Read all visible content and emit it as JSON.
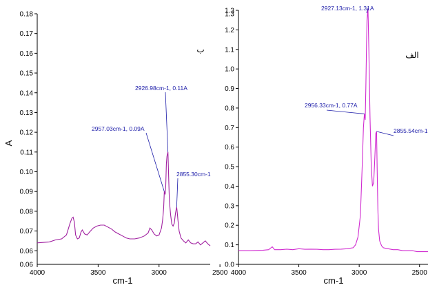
{
  "chart_data": [
    {
      "type": "line",
      "panel_label": "ب",
      "xlabel": "cm-1",
      "ylabel": "A",
      "xlim": [
        4000,
        2580
      ],
      "ylim": [
        0.058,
        0.18
      ],
      "xticks": [
        4000,
        3500,
        3000,
        2500
      ],
      "xtick_labels": [
        "4000",
        "3500",
        "3000",
        "2500"
      ],
      "yticks": [
        0.06,
        0.07,
        0.08,
        0.09,
        0.1,
        0.11,
        0.12,
        0.13,
        0.14,
        0.15,
        0.16,
        0.17,
        0.18
      ],
      "ytick_labels": [
        "0.06",
        "0.07",
        "0.08",
        "0.09",
        "0.10",
        "0.11",
        "0.12",
        "0.13",
        "0.14",
        "0.15",
        "0.16",
        "0.17",
        "0.18"
      ],
      "extra_ytick_label": "0.06",
      "color": "#a020a0",
      "series": [
        {
          "x": [
            4000,
            3900,
            3850,
            3800,
            3760,
            3730,
            3715,
            3705,
            3695,
            3685,
            3670,
            3655,
            3640,
            3630,
            3610,
            3590,
            3570,
            3540,
            3510,
            3480,
            3450,
            3420,
            3390,
            3360,
            3330,
            3300,
            3270,
            3240,
            3200,
            3160,
            3120,
            3090,
            3075,
            3060,
            3040,
            3020,
            3000,
            2980,
            2970,
            2962,
            2957,
            2950,
            2945,
            2940,
            2935,
            2927,
            2920,
            2915,
            2905,
            2895,
            2885,
            2875,
            2865,
            2858,
            2855,
            2850,
            2845,
            2835,
            2820,
            2800,
            2780,
            2760,
            2740,
            2720,
            2700,
            2680,
            2660,
            2640,
            2620,
            2600,
            2580
          ],
          "y": [
            0.064,
            0.0645,
            0.0655,
            0.066,
            0.068,
            0.074,
            0.0765,
            0.077,
            0.0745,
            0.068,
            0.066,
            0.0665,
            0.0695,
            0.0705,
            0.0685,
            0.068,
            0.0695,
            0.0715,
            0.0725,
            0.073,
            0.073,
            0.072,
            0.071,
            0.0695,
            0.0685,
            0.0675,
            0.0665,
            0.066,
            0.066,
            0.0665,
            0.0675,
            0.069,
            0.0715,
            0.0705,
            0.0685,
            0.0675,
            0.068,
            0.0715,
            0.076,
            0.082,
            0.09,
            0.0885,
            0.093,
            0.104,
            0.108,
            0.11,
            0.095,
            0.085,
            0.078,
            0.0735,
            0.0725,
            0.074,
            0.079,
            0.0815,
            0.082,
            0.079,
            0.0755,
            0.07,
            0.0665,
            0.065,
            0.064,
            0.0655,
            0.064,
            0.0635,
            0.0635,
            0.0645,
            0.063,
            0.064,
            0.065,
            0.0635,
            0.0625
          ]
        }
      ],
      "annotations": [
        {
          "text": "2926.98cm-1, 0.11A",
          "x": 2926.98,
          "y": 0.11
        },
        {
          "text": "2957.03cm-1, 0.09A",
          "x": 2957.03,
          "y": 0.09
        },
        {
          "text": "2855.30cm-1",
          "x": 2855.3,
          "y": 0.082
        }
      ]
    },
    {
      "type": "line",
      "panel_label": "الف",
      "xlabel": "cm-1",
      "ylabel": "",
      "xlim": [
        4000,
        2430
      ],
      "ylim": [
        0,
        1.3
      ],
      "xticks": [
        4000,
        3500,
        3000,
        2500
      ],
      "xtick_labels": [
        "4000",
        "3500",
        "3000",
        "2500"
      ],
      "yticks": [
        0,
        0.1,
        0.2,
        0.3,
        0.4,
        0.5,
        0.6,
        0.7,
        0.8,
        0.9,
        1.0,
        1.1,
        1.2,
        1.3
      ],
      "ytick_labels": [
        "0.0",
        "0.1",
        "0.2",
        "0.3",
        "0.4",
        "0.5",
        "0.6",
        "0.7",
        "0.8",
        "0.9",
        "1.0",
        "1.1",
        "1.2",
        "1.3"
      ],
      "extra_ytick_label": "1.3",
      "color": "#d02ad0",
      "series": [
        {
          "x": [
            4000,
            3900,
            3800,
            3750,
            3720,
            3700,
            3650,
            3600,
            3550,
            3500,
            3450,
            3400,
            3350,
            3300,
            3250,
            3200,
            3150,
            3100,
            3050,
            3030,
            3010,
            2990,
            2975,
            2965,
            2957,
            2950,
            2945,
            2940,
            2935,
            2927,
            2920,
            2910,
            2900,
            2890,
            2880,
            2870,
            2862,
            2856,
            2850,
            2845,
            2840,
            2830,
            2815,
            2800,
            2780,
            2760,
            2720,
            2680,
            2640,
            2600,
            2560,
            2520,
            2480,
            2430
          ],
          "y": [
            0.07,
            0.07,
            0.072,
            0.075,
            0.09,
            0.075,
            0.075,
            0.078,
            0.075,
            0.08,
            0.077,
            0.078,
            0.077,
            0.075,
            0.075,
            0.077,
            0.078,
            0.08,
            0.085,
            0.1,
            0.14,
            0.25,
            0.5,
            0.7,
            0.77,
            0.74,
            0.9,
            1.1,
            1.25,
            1.31,
            1.1,
            0.75,
            0.5,
            0.4,
            0.42,
            0.55,
            0.67,
            0.68,
            0.45,
            0.28,
            0.18,
            0.12,
            0.095,
            0.085,
            0.082,
            0.08,
            0.075,
            0.075,
            0.07,
            0.07,
            0.07,
            0.065,
            0.065,
            0.065
          ]
        }
      ],
      "annotations": [
        {
          "text": "2927.13cm-1, 1.31A",
          "x": 2927.13,
          "y": 1.31
        },
        {
          "text": "2956.33cm-1, 0.77A",
          "x": 2956.33,
          "y": 0.77
        },
        {
          "text": "2855.54cm-1",
          "x": 2855.54,
          "y": 0.68
        }
      ]
    }
  ]
}
